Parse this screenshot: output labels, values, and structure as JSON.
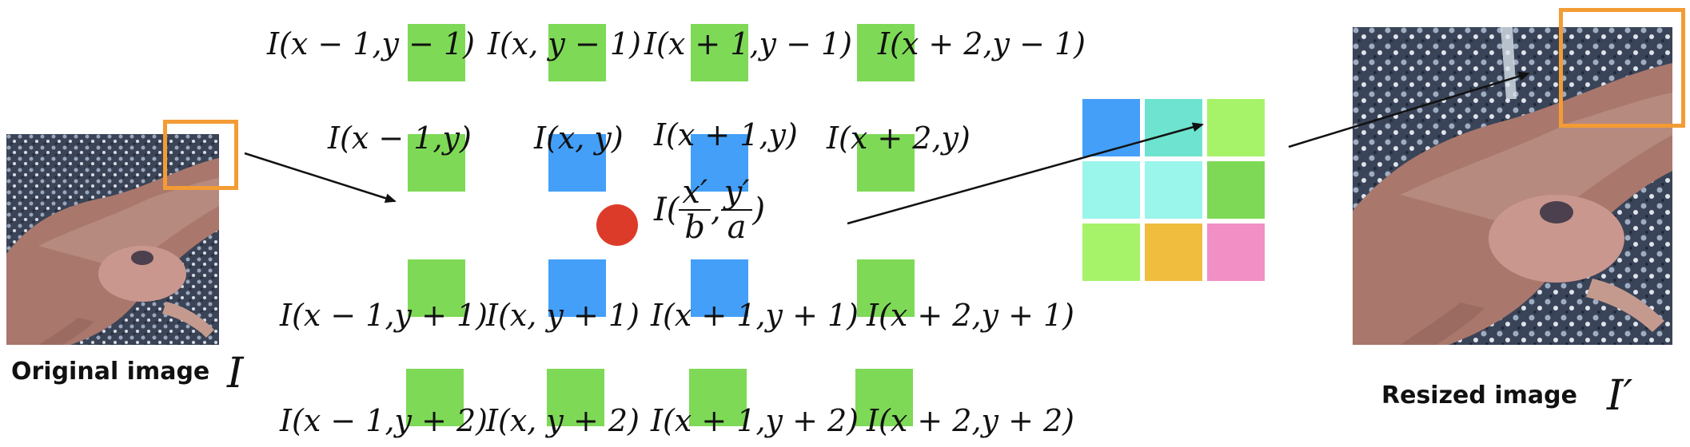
{
  "colors": {
    "green": "#7ed957",
    "blue": "#439ff8",
    "red_point": "#dd3b2a",
    "highlight_box": "#f39c35"
  },
  "left_image": {
    "caption": "Original image",
    "symbol": "I"
  },
  "right_image": {
    "caption": "Resized image",
    "symbol": "I′"
  },
  "neighbor_labels": {
    "row0": [
      "I(x − 1,y − 1)",
      "I(x, y − 1)",
      "I(x + 1,y − 1)",
      "I(x + 2,y − 1)"
    ],
    "row1": [
      "I(x − 1,y)",
      "I(x, y)",
      "I(x + 1,y)",
      "I(x + 2,y)"
    ],
    "row2": [
      "I(x − 1,y + 1)",
      "I(x, y + 1)",
      "I(x + 1,y + 1)",
      "I(x + 2,y + 1)"
    ],
    "row3": [
      "I(x − 1,y + 2)",
      "I(x, y + 2)",
      "I(x + 1,y + 2)",
      "I(x + 2,y + 2)"
    ]
  },
  "target_point": {
    "prefix": "I(",
    "x_num": "x′",
    "x_den": "b",
    "sep": ",",
    "y_num": "y′",
    "y_den": "a",
    "suffix": ")"
  },
  "output_grid_colors": [
    [
      "#439ff8",
      "#6ee3cf",
      "#a6f36a"
    ],
    [
      "#9af5ea",
      "#9af5ea",
      "#7ed957"
    ],
    [
      "#a6f36a",
      "#f1bd3e",
      "#f28fc4"
    ]
  ],
  "icons": [
    "photo-thumbnail",
    "arrow-right",
    "red-dot"
  ]
}
